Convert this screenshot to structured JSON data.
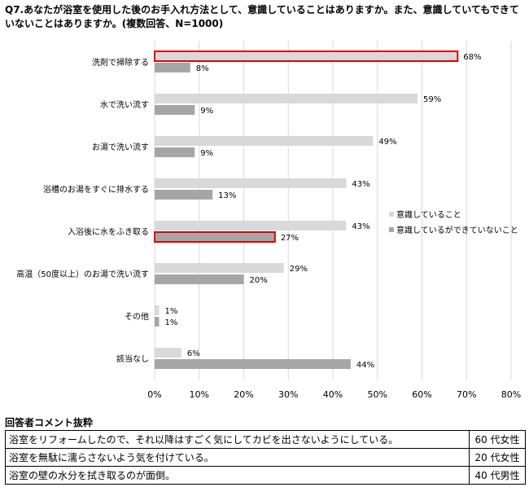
{
  "title": "Q7.あなたが浴室を使用した後のお手入れ方法として、意識していることはありますか。また、意識していてもできていないことはありますか。(複数回答、N=1000)",
  "chart_data": {
    "type": "bar",
    "orientation": "horizontal",
    "categories": [
      "洗剤で掃除する",
      "水で洗い流す",
      "お湯で洗い流す",
      "浴槽のお湯をすぐに排水する",
      "入浴後に水をふき取る",
      "高温（50度以上）のお湯で洗い流す",
      "その他",
      "該当なし"
    ],
    "series": [
      {
        "name": "意識していること",
        "values": [
          68,
          59,
          49,
          43,
          43,
          29,
          1,
          6
        ],
        "color": "#d9d9d9"
      },
      {
        "name": "意識しているができていないこと",
        "values": [
          8,
          9,
          9,
          13,
          27,
          20,
          1,
          44
        ],
        "color": "#a6a6a6"
      }
    ],
    "value_labels": [
      [
        "68%",
        "59%",
        "49%",
        "43%",
        "43%",
        "29%",
        "1%",
        "6%"
      ],
      [
        "8%",
        "9%",
        "9%",
        "13%",
        "27%",
        "20%",
        "1%",
        "44%"
      ]
    ],
    "highlighted": [
      {
        "series": 0,
        "category": 0
      },
      {
        "series": 1,
        "category": 4
      }
    ],
    "highlight_color": "#e00000",
    "xlim": [
      0,
      80
    ],
    "xticks": [
      "0%",
      "10%",
      "20%",
      "30%",
      "40%",
      "50%",
      "60%",
      "70%",
      "80%"
    ],
    "grid": true,
    "legend_position": "right"
  },
  "comments": {
    "title": "回答者コメント抜粋",
    "rows": [
      {
        "text": "浴室をリフォームしたので、それ以降はすごく気にしてカビを出さないようにしている。",
        "who": "60 代女性"
      },
      {
        "text": "浴室を無駄に濡らさないよう気を付けている。",
        "who": "20 代女性"
      },
      {
        "text": "浴室の壁の水分を拭き取るのが面倒。",
        "who": "40 代男性"
      }
    ]
  }
}
